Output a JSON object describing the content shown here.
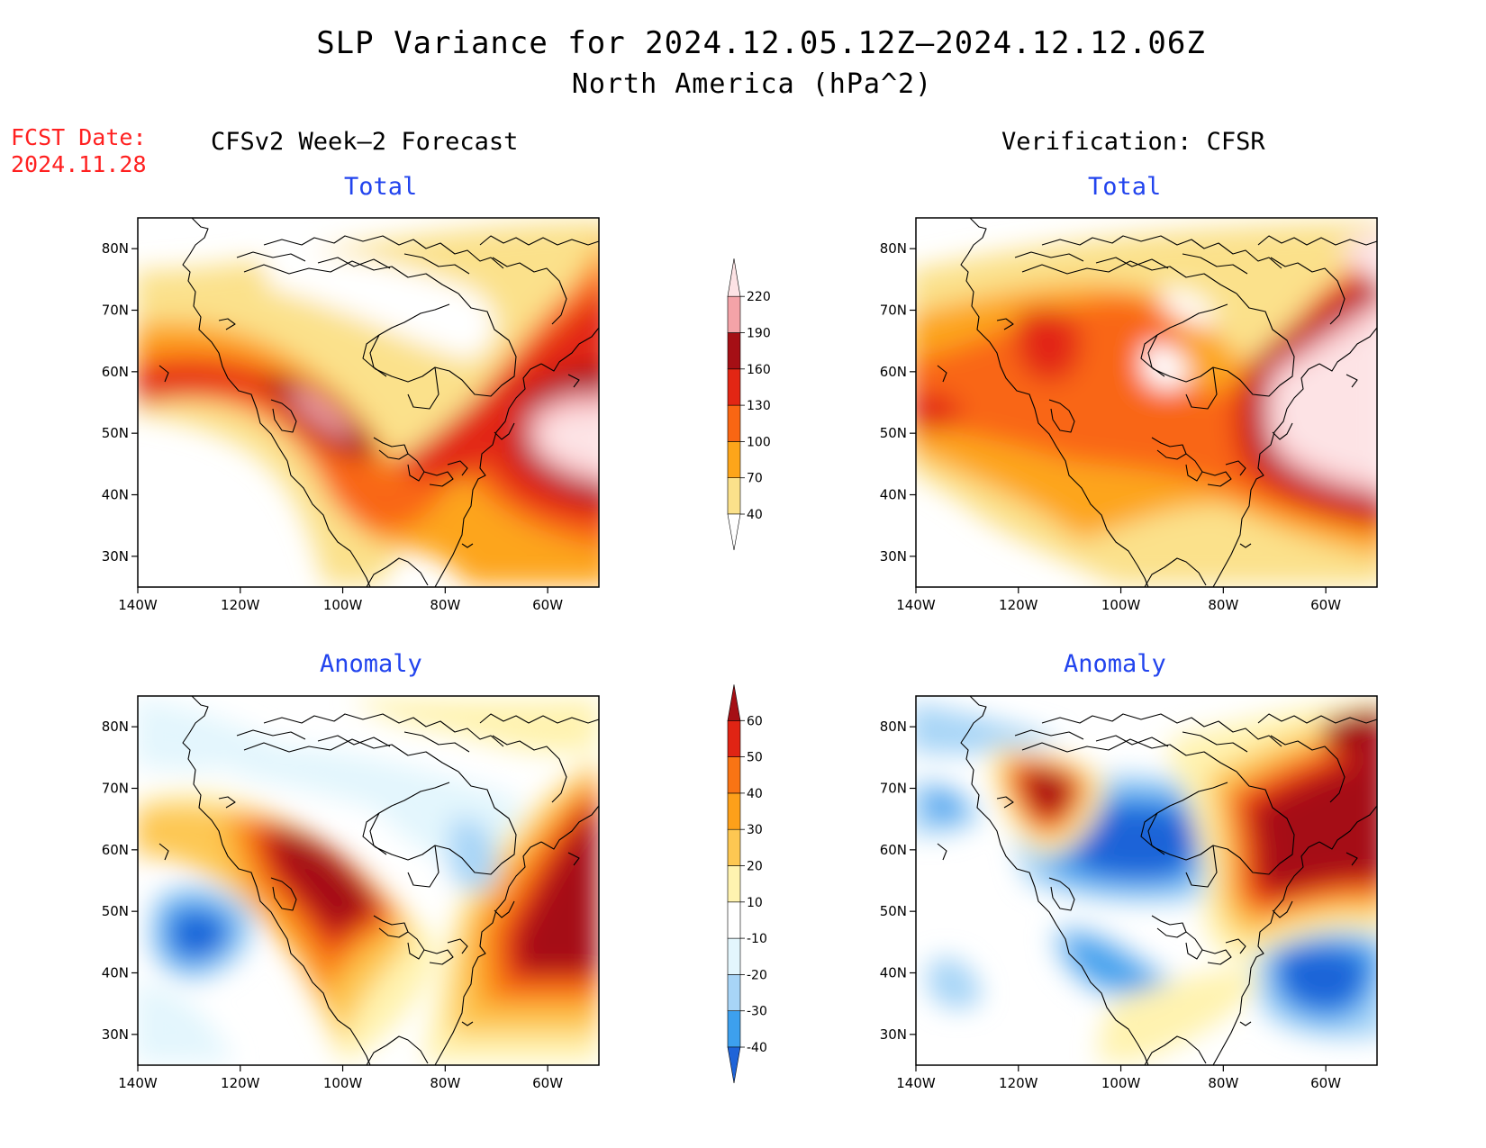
{
  "title": "SLP Variance for 2024.12.05.12Z–2024.12.12.06Z",
  "subtitle": "North America (hPa^2)",
  "fcst_label": "FCST Date:",
  "fcst_date": "2024.11.28",
  "left_column_title": "CFSv2 Week–2 Forecast",
  "right_column_title": "Verification: CFSR",
  "panel_labels": {
    "total": "Total",
    "anomaly": "Anomaly"
  },
  "colors": {
    "total_scale": [
      "#fbe18b",
      "#fda51a",
      "#f96613",
      "#e22614",
      "#a50f15",
      "#f4a3a8",
      "#fde3e5"
    ],
    "anomaly_scale": [
      "#1f64d8",
      "#3da0ee",
      "#a8d5f7",
      "#e3f6fd",
      "#ffffff",
      "#fff3b0",
      "#fdc752",
      "#fda01a",
      "#f97414",
      "#e02414",
      "#a50f15"
    ]
  },
  "chart_data": [
    {
      "type": "heatmap",
      "panel": "forecast-total",
      "title": "Total",
      "x_ticks": [
        "140W",
        "120W",
        "100W",
        "80W",
        "60W"
      ],
      "y_ticks": [
        "30N",
        "40N",
        "50N",
        "60N",
        "70N",
        "80N"
      ],
      "xlim": [
        -140,
        -50
      ],
      "ylim": [
        25,
        85
      ],
      "levels": [
        "40",
        "70",
        "100",
        "130",
        "160",
        "190",
        "220"
      ]
    },
    {
      "type": "heatmap",
      "panel": "verification-total",
      "title": "Total",
      "x_ticks": [
        "140W",
        "120W",
        "100W",
        "80W",
        "60W"
      ],
      "y_ticks": [
        "30N",
        "40N",
        "50N",
        "60N",
        "70N",
        "80N"
      ],
      "xlim": [
        -140,
        -50
      ],
      "ylim": [
        25,
        85
      ],
      "levels": [
        "40",
        "70",
        "100",
        "130",
        "160",
        "190",
        "220"
      ]
    },
    {
      "type": "heatmap",
      "panel": "forecast-anomaly",
      "title": "Anomaly",
      "x_ticks": [
        "140W",
        "120W",
        "100W",
        "80W",
        "60W"
      ],
      "y_ticks": [
        "30N",
        "40N",
        "50N",
        "60N",
        "70N",
        "80N"
      ],
      "xlim": [
        -140,
        -50
      ],
      "ylim": [
        25,
        85
      ],
      "levels": [
        "-40",
        "-30",
        "-20",
        "-10",
        "10",
        "20",
        "30",
        "40",
        "50",
        "60"
      ]
    },
    {
      "type": "heatmap",
      "panel": "verification-anomaly",
      "title": "Anomaly",
      "x_ticks": [
        "140W",
        "120W",
        "100W",
        "80W",
        "60W"
      ],
      "y_ticks": [
        "30N",
        "40N",
        "50N",
        "60N",
        "70N",
        "80N"
      ],
      "xlim": [
        -140,
        -50
      ],
      "ylim": [
        25,
        85
      ],
      "levels": [
        "-40",
        "-30",
        "-20",
        "-10",
        "10",
        "20",
        "30",
        "40",
        "50",
        "60"
      ]
    }
  ]
}
